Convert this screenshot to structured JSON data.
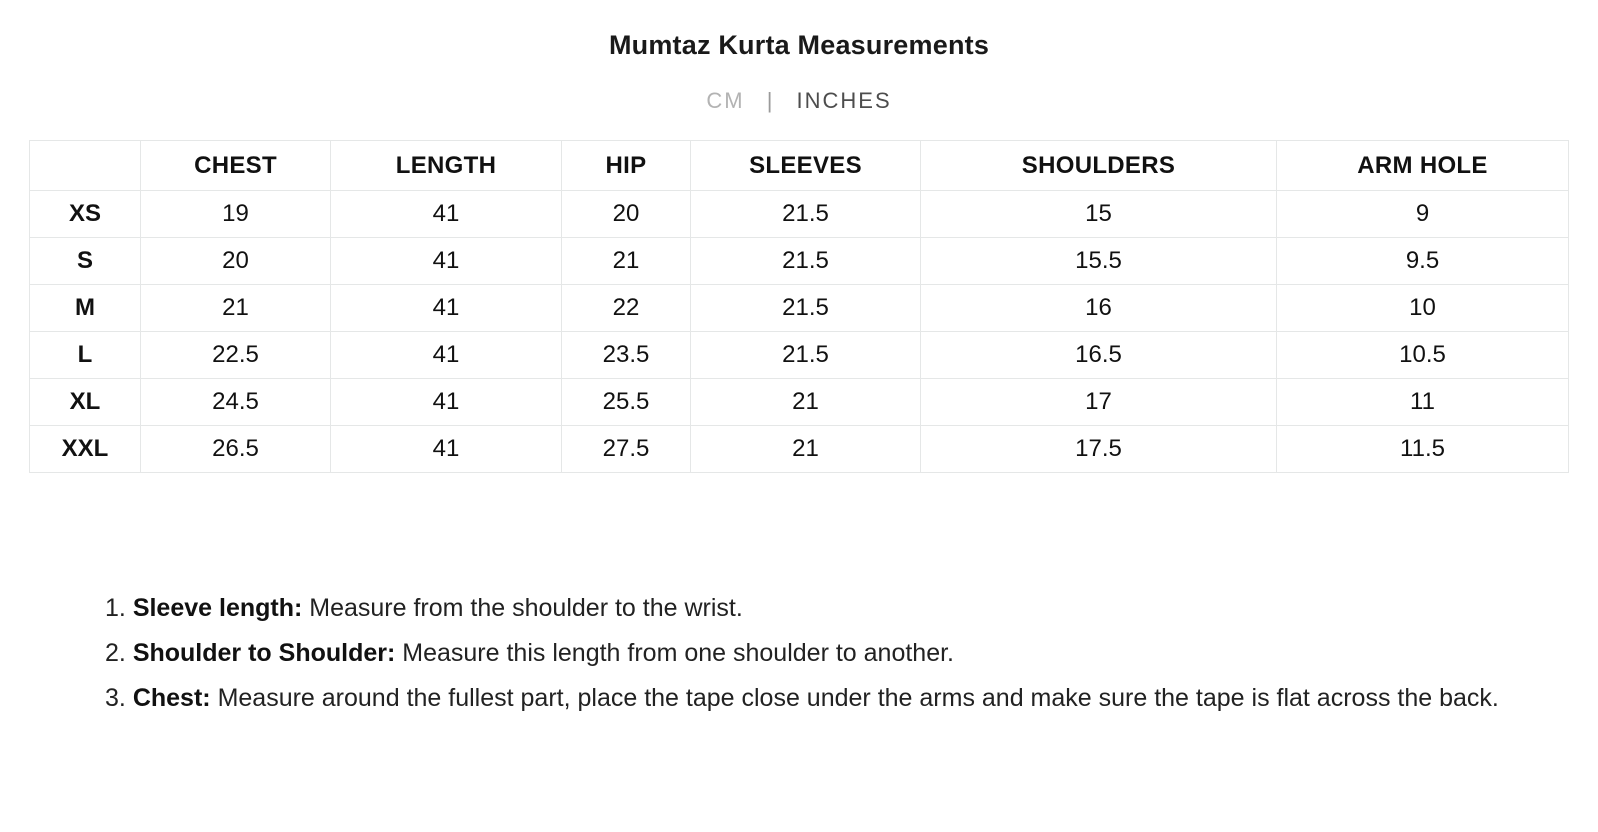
{
  "title": "Mumtaz Kurta Measurements",
  "unit_toggle": {
    "cm_label": "CM",
    "divider": "|",
    "inches_label": "INCHES",
    "active_unit": "INCHES"
  },
  "table": {
    "columns": [
      "",
      "CHEST",
      "LENGTH",
      "HIP",
      "SLEEVES",
      "SHOULDERS",
      "ARM HOLE"
    ],
    "rows": [
      {
        "size": "XS",
        "values": [
          "19",
          "41",
          "20",
          "21.5",
          "15",
          "9"
        ]
      },
      {
        "size": "S",
        "values": [
          "20",
          "41",
          "21",
          "21.5",
          "15.5",
          "9.5"
        ]
      },
      {
        "size": "M",
        "values": [
          "21",
          "41",
          "22",
          "21.5",
          "16",
          "10"
        ]
      },
      {
        "size": "L",
        "values": [
          "22.5",
          "41",
          "23.5",
          "21.5",
          "16.5",
          "10.5"
        ]
      },
      {
        "size": "XL",
        "values": [
          "24.5",
          "41",
          "25.5",
          "21",
          "17",
          "11"
        ]
      },
      {
        "size": "XXL",
        "values": [
          "26.5",
          "41",
          "27.5",
          "21",
          "17.5",
          "11.5"
        ]
      }
    ]
  },
  "notes": [
    {
      "number": "1.",
      "label": "Sleeve length:",
      "text": "Measure from the shoulder to the wrist."
    },
    {
      "number": "2.",
      "label": "Shoulder to Shoulder:",
      "text": "Measure this length from one shoulder to another."
    },
    {
      "number": "3.",
      "label": "Chest:",
      "text": "Measure around the fullest part, place the tape close under the arms and make sure the tape is flat across the back."
    }
  ],
  "colors": {
    "background": "#ffffff",
    "table_border": "#e5e7e7",
    "text_primary": "#111111",
    "unit_inactive": "#b3b3b3",
    "unit_active": "#4d4d4d",
    "unit_divider": "#9a9a9a"
  }
}
